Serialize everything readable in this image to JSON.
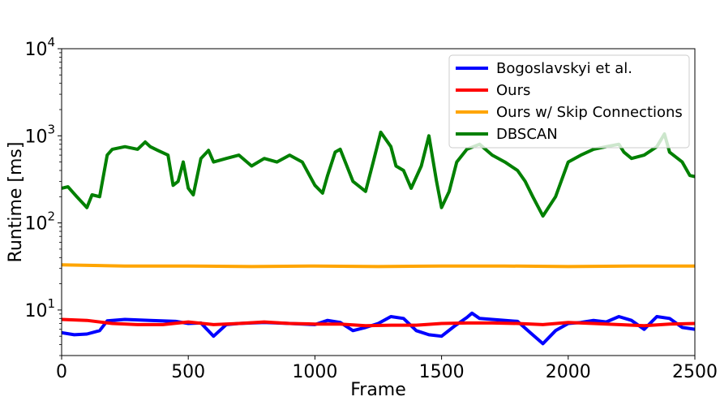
{
  "chart_data": {
    "type": "line",
    "title": "",
    "xlabel": "Frame",
    "ylabel": "Runtime [ms]",
    "xlim": [
      0,
      2500
    ],
    "ylim": [
      3,
      10000
    ],
    "yscale": "log",
    "grid": false,
    "legend_placement": "top-right",
    "x_ticks": [
      0,
      500,
      1000,
      1500,
      2000,
      2500
    ],
    "x_tick_labels": [
      "0",
      "500",
      "1000",
      "1500",
      "2000",
      "2500"
    ],
    "y_ticks": [
      10,
      100,
      1000,
      10000
    ],
    "y_tick_labels": [
      {
        "base": "10",
        "exp": "1"
      },
      {
        "base": "10",
        "exp": "2"
      },
      {
        "base": "10",
        "exp": "3"
      },
      {
        "base": "10",
        "exp": "4"
      }
    ],
    "series": [
      {
        "name": "Bogoslavskyi et al.",
        "color": "#0000ff",
        "x": [
          0,
          50,
          100,
          150,
          180,
          250,
          350,
          450,
          500,
          550,
          600,
          650,
          700,
          800,
          900,
          1000,
          1050,
          1100,
          1150,
          1200,
          1250,
          1300,
          1350,
          1400,
          1450,
          1500,
          1550,
          1600,
          1620,
          1650,
          1700,
          1800,
          1850,
          1900,
          1950,
          2000,
          2050,
          2100,
          2150,
          2200,
          2250,
          2300,
          2350,
          2400,
          2450,
          2500
        ],
        "y": [
          5.5,
          5.2,
          5.3,
          5.8,
          7.5,
          7.8,
          7.6,
          7.4,
          7.0,
          7.1,
          5.0,
          6.8,
          7.0,
          7.2,
          7.0,
          6.8,
          7.6,
          7.2,
          5.8,
          6.3,
          7.0,
          8.4,
          8.0,
          5.8,
          5.2,
          5.0,
          6.5,
          8.2,
          9.2,
          8.0,
          7.8,
          7.4,
          5.5,
          4.1,
          5.8,
          7.0,
          7.2,
          7.6,
          7.3,
          8.4,
          7.6,
          6.0,
          8.4,
          8.0,
          6.3,
          6.0
        ]
      },
      {
        "name": "Ours",
        "color": "#ff0000",
        "x": [
          0,
          100,
          200,
          300,
          400,
          500,
          600,
          700,
          800,
          900,
          1000,
          1100,
          1200,
          1300,
          1400,
          1500,
          1600,
          1700,
          1800,
          1900,
          2000,
          2100,
          2200,
          2300,
          2400,
          2500
        ],
        "y": [
          7.8,
          7.6,
          7.0,
          6.8,
          6.8,
          7.3,
          6.8,
          7.0,
          7.3,
          7.0,
          6.9,
          6.9,
          6.6,
          6.7,
          6.7,
          7.0,
          7.1,
          7.1,
          7.0,
          6.8,
          7.2,
          7.0,
          6.8,
          6.6,
          6.9,
          7.0
        ]
      },
      {
        "name": "Ours w/ Skip Connections",
        "color": "#ffa500",
        "x": [
          0,
          250,
          500,
          750,
          1000,
          1250,
          1500,
          1750,
          2000,
          2250,
          2500
        ],
        "y": [
          33,
          32,
          32,
          31.5,
          32,
          31.5,
          32,
          32,
          31.5,
          32,
          32
        ]
      },
      {
        "name": "DBSCAN",
        "color": "#008000",
        "x": [
          0,
          25,
          60,
          100,
          120,
          150,
          180,
          200,
          250,
          300,
          330,
          350,
          380,
          420,
          440,
          460,
          480,
          500,
          520,
          550,
          580,
          600,
          650,
          700,
          750,
          800,
          850,
          900,
          950,
          1000,
          1030,
          1050,
          1080,
          1100,
          1150,
          1200,
          1230,
          1260,
          1300,
          1320,
          1350,
          1380,
          1420,
          1450,
          1480,
          1500,
          1530,
          1560,
          1600,
          1650,
          1700,
          1750,
          1800,
          1830,
          1860,
          1900,
          1950,
          2000,
          2050,
          2100,
          2150,
          2200,
          2220,
          2250,
          2300,
          2350,
          2380,
          2400,
          2450,
          2480,
          2500
        ],
        "y": [
          250,
          260,
          200,
          150,
          210,
          200,
          600,
          700,
          750,
          700,
          850,
          750,
          680,
          600,
          270,
          300,
          500,
          250,
          210,
          550,
          680,
          500,
          550,
          600,
          450,
          550,
          500,
          600,
          500,
          270,
          220,
          350,
          650,
          700,
          300,
          230,
          500,
          1100,
          750,
          450,
          400,
          250,
          450,
          1000,
          300,
          150,
          230,
          500,
          700,
          800,
          600,
          500,
          400,
          300,
          200,
          120,
          200,
          500,
          600,
          700,
          750,
          800,
          650,
          550,
          600,
          750,
          1050,
          650,
          500,
          350,
          340
        ]
      }
    ]
  }
}
